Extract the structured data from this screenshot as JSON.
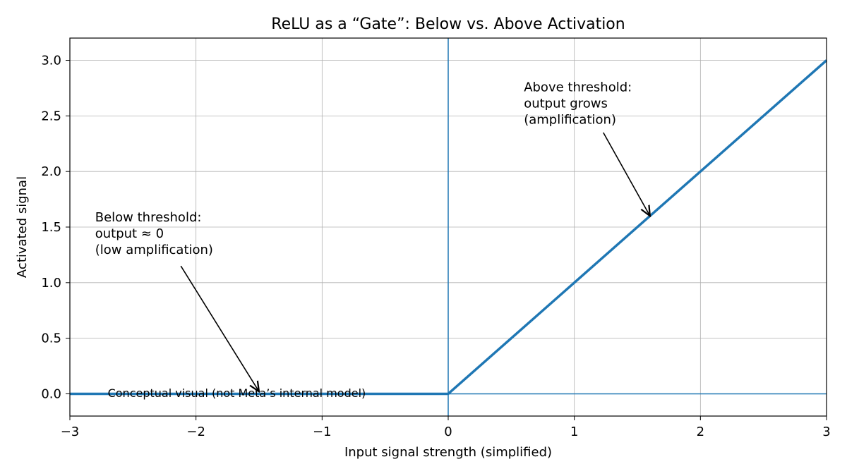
{
  "chart_data": {
    "type": "line",
    "title": "ReLU as a “Gate”: Below vs. Above Activation",
    "xlabel": "Input signal strength (simplified)",
    "ylabel": "Activated signal",
    "xlim": [
      -3,
      3
    ],
    "ylim": [
      -0.2,
      3.2
    ],
    "grid": true,
    "x_ticks": [
      -3,
      -2,
      -1,
      0,
      1,
      2,
      3
    ],
    "x_tick_labels": [
      "−3",
      "−2",
      "−1",
      "0",
      "1",
      "2",
      "3"
    ],
    "y_ticks": [
      0.0,
      0.5,
      1.0,
      1.5,
      2.0,
      2.5,
      3.0
    ],
    "y_tick_labels": [
      "0.0",
      "0.5",
      "1.0",
      "1.5",
      "2.0",
      "2.5",
      "3.0"
    ],
    "series": [
      {
        "x": [
          -3,
          0,
          3
        ],
        "y": [
          0,
          0,
          3
        ],
        "color": "#1f77b4"
      }
    ],
    "reference_lines": [
      {
        "orientation": "vertical",
        "value": 0,
        "color": "#1f77b4"
      },
      {
        "orientation": "horizontal",
        "value": 0,
        "color": "#1f77b4"
      }
    ],
    "annotations": [
      {
        "lines": [
          "Below threshold:",
          "output ≈ 0",
          "(low amplification)"
        ],
        "text_at": [
          -2.8,
          1.55
        ],
        "arrow_from": [
          -2.12,
          1.15
        ],
        "arrow_to": [
          -1.5,
          0.02
        ]
      },
      {
        "lines": [
          "Above threshold:",
          "output grows",
          "(amplification)"
        ],
        "text_at": [
          0.6,
          2.72
        ],
        "arrow_from": [
          1.23,
          2.35
        ],
        "arrow_to": [
          1.6,
          1.6
        ]
      }
    ],
    "note": {
      "text": "Conceptual visual (not Meta’s internal model)",
      "at": [
        -2.7,
        0.01
      ]
    }
  }
}
